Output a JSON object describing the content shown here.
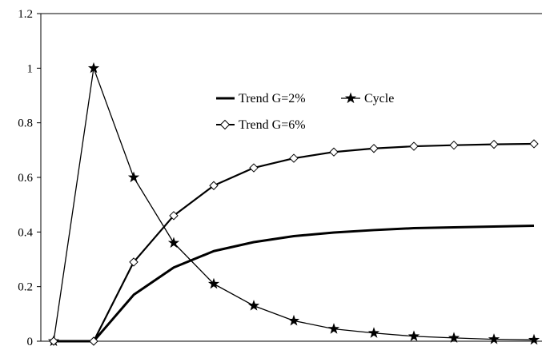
{
  "chart_data": {
    "type": "line",
    "title": "",
    "xlabel": "",
    "ylabel": "",
    "ylim": [
      0,
      1.2
    ],
    "yticks": [
      "0",
      "0.2",
      "0.4",
      "0.6",
      "0.8",
      "1",
      "1.2"
    ],
    "grid": false,
    "legend_position": "top-center",
    "x": [
      0,
      1,
      2,
      3,
      4,
      5,
      6,
      7,
      8,
      9,
      10,
      11,
      12
    ],
    "series": [
      {
        "name": "Trend G=2%",
        "marker": "none",
        "stroke_width": 3,
        "values": [
          0,
          0,
          0.17,
          0.27,
          0.33,
          0.363,
          0.385,
          0.398,
          0.407,
          0.414,
          0.417,
          0.42,
          0.423
        ]
      },
      {
        "name": "Cycle",
        "marker": "star",
        "stroke_width": 1.3,
        "values": [
          0,
          1.0,
          0.6,
          0.36,
          0.21,
          0.13,
          0.075,
          0.045,
          0.03,
          0.018,
          0.012,
          0.007,
          0.005
        ]
      },
      {
        "name": "Trend G=6%",
        "marker": "diamond",
        "stroke_width": 2.2,
        "values": [
          0,
          0,
          0.29,
          0.46,
          0.57,
          0.635,
          0.67,
          0.693,
          0.706,
          0.714,
          0.718,
          0.721,
          0.723
        ]
      }
    ],
    "colors": {
      "line": "#000000",
      "background": "#ffffff"
    }
  }
}
